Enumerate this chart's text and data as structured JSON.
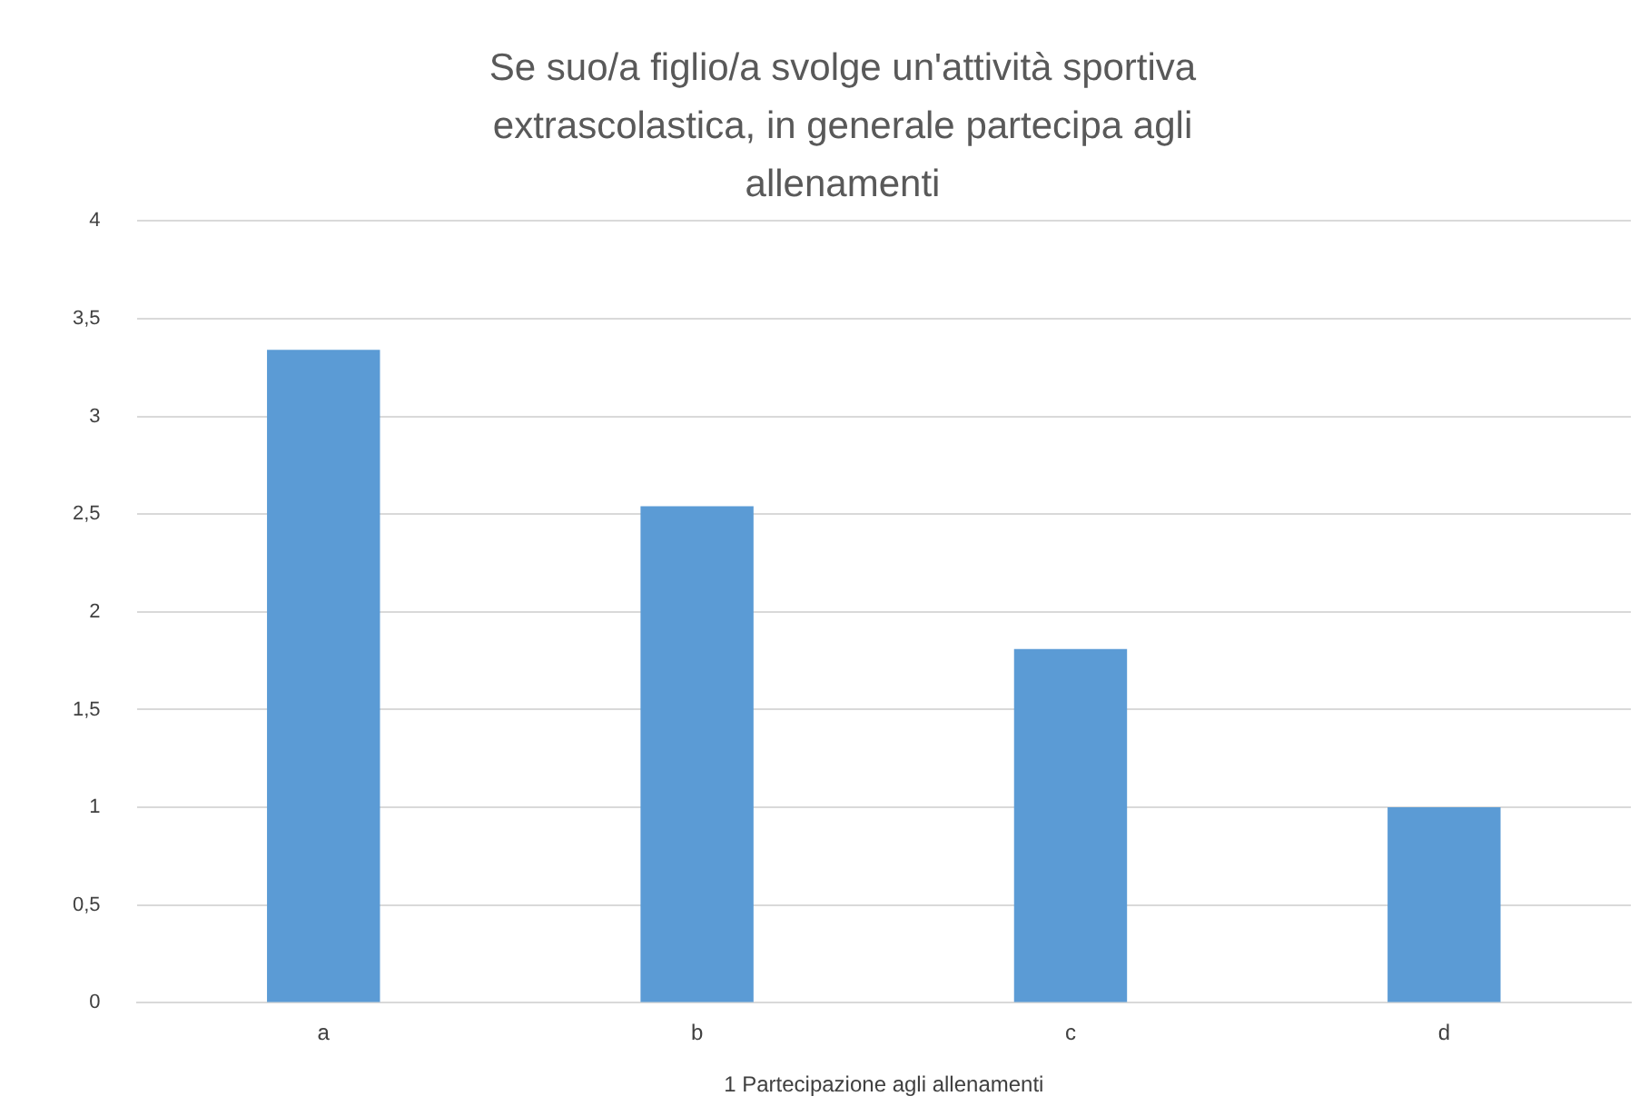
{
  "chart_data": {
    "type": "bar",
    "title": "Se suo/a figlio/a svolge un'attività sportiva extrascolastica, in generale partecipa agli allenamenti",
    "xlabel": "1 Partecipazione agli allenamenti",
    "categories": [
      "a",
      "b",
      "c",
      "d"
    ],
    "values": [
      3.34,
      2.54,
      1.81,
      1.0
    ],
    "color": "#5b9bd5",
    "ylim": [
      0,
      4
    ],
    "yticks": [
      0,
      {
        "value": 0.5,
        "label": "0,5"
      },
      1,
      {
        "value": 1.5,
        "label": "1,5"
      },
      2,
      {
        "value": 2.5,
        "label": "2,5"
      },
      3,
      {
        "value": 3.5,
        "label": "3,5"
      },
      4
    ],
    "grid": "y",
    "legend": false
  }
}
